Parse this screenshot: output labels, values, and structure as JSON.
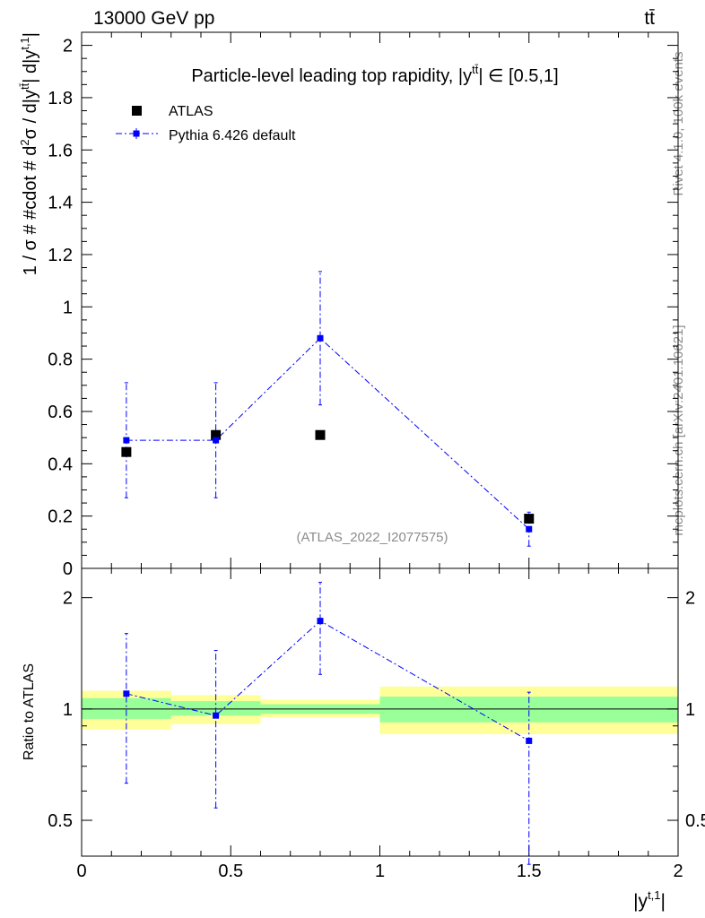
{
  "header": {
    "energy_label": "13000 GeV pp",
    "process_label": "tt̄"
  },
  "side_labels": {
    "rivet": "Rivet 4.1.0,  100k events",
    "mcplots": "mcplots.cern.ch [arXiv:2401.10621]"
  },
  "chart_data": [
    {
      "type": "scatter",
      "panel": "main",
      "title": "Particle-level leading top rapidity, |y̅tt̅| ∈ [0.5,1]",
      "title_prefix": "Particle-level leading top rapidity, |y",
      "title_sup": "tt̄",
      "title_suffix": "| ∈ [0.5,1]",
      "ylabel": "1 / σ # #cdot # d²σ / d|y̅tt̅| d|yt,1|",
      "ylabel_parts": [
        "1 / σ # #cdot # d",
        "2",
        "σ / d|y",
        "tt̄",
        "| d|y",
        "t,1",
        "|"
      ],
      "xlim": [
        0,
        2
      ],
      "ylim": [
        0,
        2.05
      ],
      "y_ticks": [
        0,
        0.2,
        0.4,
        0.6,
        0.8,
        1,
        1.2,
        1.4,
        1.6,
        1.8,
        2
      ],
      "y_tick_labels": [
        "0",
        "0.2",
        "0.4",
        "0.6",
        "0.8",
        "1",
        "1.2",
        "1.4",
        "1.6",
        "1.8",
        "2"
      ],
      "watermark": "(ATLAS_2022_I2077575)",
      "legend_position": "top-left",
      "series": [
        {
          "name": "ATLAS",
          "color": "#000000",
          "marker": "square",
          "x": [
            0.15,
            0.45,
            0.8,
            1.5
          ],
          "y": [
            0.445,
            0.51,
            0.51,
            0.19
          ],
          "yerr": [
            0.01,
            0.01,
            0.01,
            0.015
          ]
        },
        {
          "name": "Pythia 6.426 default",
          "color": "#0000ff",
          "marker": "square",
          "line": "dash-dot",
          "x": [
            0.15,
            0.45,
            0.8,
            1.5
          ],
          "y": [
            0.49,
            0.49,
            0.88,
            0.15
          ],
          "yerr_low": [
            0.22,
            0.22,
            0.255,
            0.065
          ],
          "yerr_high": [
            0.22,
            0.22,
            0.255,
            0.065
          ]
        }
      ]
    },
    {
      "type": "scatter",
      "panel": "ratio",
      "ylabel": "Ratio to ATLAS",
      "xlabel": "|yt,1|",
      "xlabel_main": "|y",
      "xlabel_sup": "t,1",
      "xlabel_end": "|",
      "xlim": [
        0,
        2
      ],
      "ylim": [
        0.4,
        2.4
      ],
      "ylog": true,
      "x_ticks": [
        0,
        0.5,
        1,
        1.5,
        2
      ],
      "x_tick_labels": [
        "0",
        "0.5",
        "1",
        "1.5",
        "2"
      ],
      "y_ticks": [
        0.5,
        1,
        2
      ],
      "y_tick_labels": [
        "0.5",
        "1",
        "2"
      ],
      "bands": [
        {
          "x0": 0,
          "x1": 0.3,
          "green_lo": 0.94,
          "green_hi": 1.07,
          "yellow_lo": 0.88,
          "yellow_hi": 1.12
        },
        {
          "x0": 0.3,
          "x1": 0.6,
          "green_lo": 0.96,
          "green_hi": 1.05,
          "yellow_lo": 0.91,
          "yellow_hi": 1.09
        },
        {
          "x0": 0.6,
          "x1": 1.0,
          "green_lo": 0.97,
          "green_hi": 1.03,
          "yellow_lo": 0.95,
          "yellow_hi": 1.06
        },
        {
          "x0": 1.0,
          "x1": 2.0,
          "green_lo": 0.92,
          "green_hi": 1.08,
          "yellow_lo": 0.855,
          "yellow_hi": 1.15
        }
      ],
      "series": [
        {
          "name": "Pythia 6.426 default / ATLAS",
          "color": "#0000ff",
          "x": [
            0.15,
            0.45,
            0.8,
            1.5
          ],
          "y": [
            1.1,
            0.96,
            1.73,
            0.82
          ],
          "y_low": [
            0.63,
            0.54,
            1.24,
            0.38
          ],
          "y_high": [
            1.6,
            1.44,
            2.2,
            1.11
          ]
        }
      ]
    }
  ]
}
